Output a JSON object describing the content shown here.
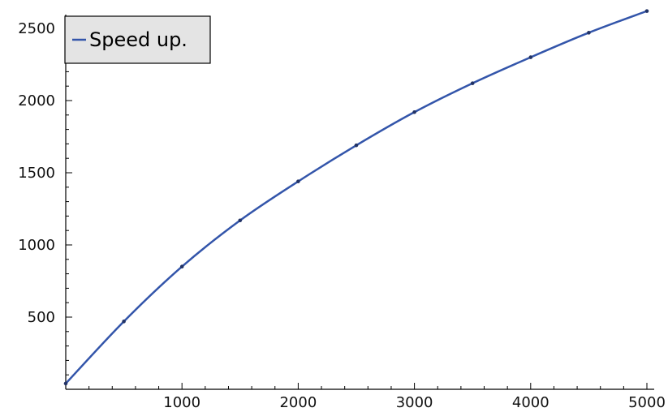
{
  "chart_data": {
    "type": "line",
    "title": "",
    "xlabel": "",
    "ylabel": "",
    "xlim": [
      0,
      5000
    ],
    "ylim": [
      0,
      2600
    ],
    "x_ticks": [
      1000,
      2000,
      3000,
      4000,
      5000
    ],
    "y_ticks": [
      500,
      1000,
      1500,
      2000,
      2500
    ],
    "x_tick_labels": [
      "1000",
      "2000",
      "3000",
      "4000",
      "5000"
    ],
    "y_tick_labels": [
      "500",
      "1000",
      "1500",
      "2000",
      "2500"
    ],
    "grid": false,
    "legend": {
      "placement": "top-left",
      "entries": [
        "Speed up."
      ]
    },
    "series": [
      {
        "name": "Speed up.",
        "color": "#3355aa",
        "x": [
          0,
          500,
          1000,
          1500,
          2000,
          2500,
          3000,
          3500,
          4000,
          4500,
          5000
        ],
        "y": [
          40,
          470,
          850,
          1170,
          1440,
          1690,
          1920,
          2120,
          2300,
          2470,
          2620
        ]
      }
    ]
  }
}
